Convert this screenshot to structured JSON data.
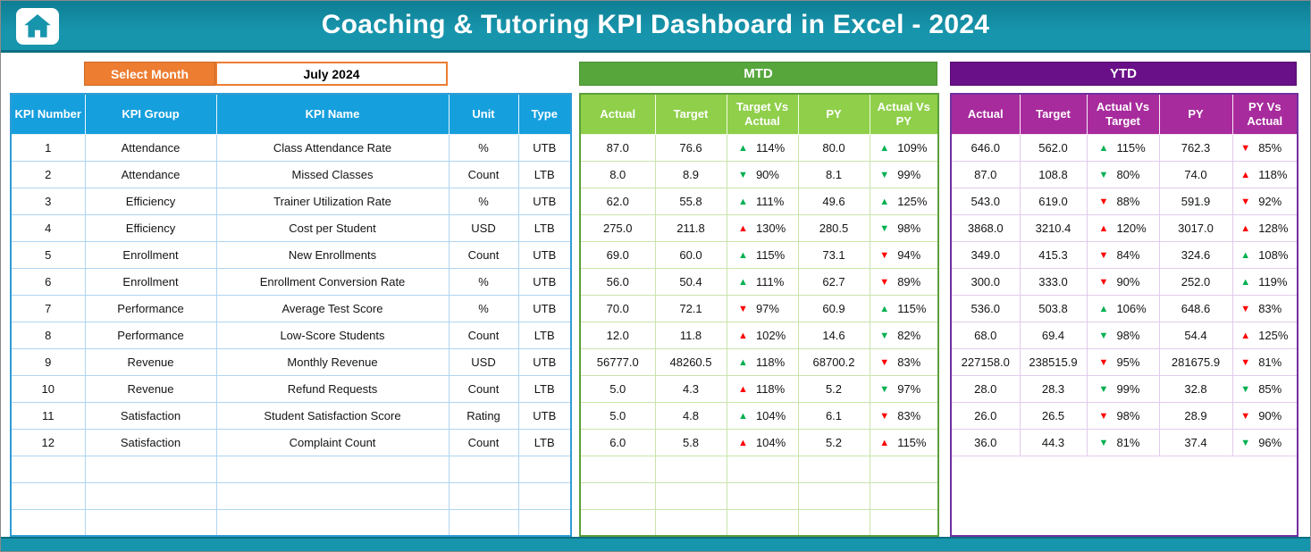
{
  "header": {
    "title": "Coaching & Tutoring KPI Dashboard in Excel - 2024"
  },
  "controls": {
    "select_month_label": "Select Month",
    "selected_month": "July 2024"
  },
  "sections": {
    "mtd_label": "MTD",
    "ytd_label": "YTD"
  },
  "table": {
    "kpi_headers": [
      "KPI Number",
      "KPI Group",
      "KPI Name",
      "Unit",
      "Type"
    ],
    "mtd_headers": [
      "Actual",
      "Target",
      "Target Vs Actual",
      "PY",
      "Actual Vs PY"
    ],
    "ytd_headers": [
      "Actual",
      "Target",
      "Actual Vs Target",
      "PY",
      "PY Vs Actual"
    ],
    "empty_row_count": 3,
    "rows": [
      {
        "number": "1",
        "group": "Attendance",
        "name": "Class Attendance Rate",
        "unit": "%",
        "type": "UTB",
        "mtd": {
          "actual": "87.0",
          "target": "76.6",
          "target_vs_actual": {
            "arrow": "up",
            "color": "green",
            "value": "114%"
          },
          "py": "80.0",
          "actual_vs_py": {
            "arrow": "up",
            "color": "green",
            "value": "109%"
          }
        },
        "ytd": {
          "actual": "646.0",
          "target": "562.0",
          "actual_vs_target": {
            "arrow": "up",
            "color": "green",
            "value": "115%"
          },
          "py": "762.3",
          "py_vs_actual": {
            "arrow": "down",
            "color": "red",
            "value": "85%"
          }
        }
      },
      {
        "number": "2",
        "group": "Attendance",
        "name": "Missed Classes",
        "unit": "Count",
        "type": "LTB",
        "mtd": {
          "actual": "8.0",
          "target": "8.9",
          "target_vs_actual": {
            "arrow": "down",
            "color": "green",
            "value": "90%"
          },
          "py": "8.1",
          "actual_vs_py": {
            "arrow": "down",
            "color": "green",
            "value": "99%"
          }
        },
        "ytd": {
          "actual": "87.0",
          "target": "108.8",
          "actual_vs_target": {
            "arrow": "down",
            "color": "green",
            "value": "80%"
          },
          "py": "74.0",
          "py_vs_actual": {
            "arrow": "up",
            "color": "red",
            "value": "118%"
          }
        }
      },
      {
        "number": "3",
        "group": "Efficiency",
        "name": "Trainer Utilization Rate",
        "unit": "%",
        "type": "UTB",
        "mtd": {
          "actual": "62.0",
          "target": "55.8",
          "target_vs_actual": {
            "arrow": "up",
            "color": "green",
            "value": "111%"
          },
          "py": "49.6",
          "actual_vs_py": {
            "arrow": "up",
            "color": "green",
            "value": "125%"
          }
        },
        "ytd": {
          "actual": "543.0",
          "target": "619.0",
          "actual_vs_target": {
            "arrow": "down",
            "color": "red",
            "value": "88%"
          },
          "py": "591.9",
          "py_vs_actual": {
            "arrow": "down",
            "color": "red",
            "value": "92%"
          }
        }
      },
      {
        "number": "4",
        "group": "Efficiency",
        "name": "Cost per Student",
        "unit": "USD",
        "type": "LTB",
        "mtd": {
          "actual": "275.0",
          "target": "211.8",
          "target_vs_actual": {
            "arrow": "up",
            "color": "red",
            "value": "130%"
          },
          "py": "280.5",
          "actual_vs_py": {
            "arrow": "down",
            "color": "green",
            "value": "98%"
          }
        },
        "ytd": {
          "actual": "3868.0",
          "target": "3210.4",
          "actual_vs_target": {
            "arrow": "up",
            "color": "red",
            "value": "120%"
          },
          "py": "3017.0",
          "py_vs_actual": {
            "arrow": "up",
            "color": "red",
            "value": "128%"
          }
        }
      },
      {
        "number": "5",
        "group": "Enrollment",
        "name": "New Enrollments",
        "unit": "Count",
        "type": "UTB",
        "mtd": {
          "actual": "69.0",
          "target": "60.0",
          "target_vs_actual": {
            "arrow": "up",
            "color": "green",
            "value": "115%"
          },
          "py": "73.1",
          "actual_vs_py": {
            "arrow": "down",
            "color": "red",
            "value": "94%"
          }
        },
        "ytd": {
          "actual": "349.0",
          "target": "415.3",
          "actual_vs_target": {
            "arrow": "down",
            "color": "red",
            "value": "84%"
          },
          "py": "324.6",
          "py_vs_actual": {
            "arrow": "up",
            "color": "green",
            "value": "108%"
          }
        }
      },
      {
        "number": "6",
        "group": "Enrollment",
        "name": "Enrollment Conversion Rate",
        "unit": "%",
        "type": "UTB",
        "mtd": {
          "actual": "56.0",
          "target": "50.4",
          "target_vs_actual": {
            "arrow": "up",
            "color": "green",
            "value": "111%"
          },
          "py": "62.7",
          "actual_vs_py": {
            "arrow": "down",
            "color": "red",
            "value": "89%"
          }
        },
        "ytd": {
          "actual": "300.0",
          "target": "333.0",
          "actual_vs_target": {
            "arrow": "down",
            "color": "red",
            "value": "90%"
          },
          "py": "252.0",
          "py_vs_actual": {
            "arrow": "up",
            "color": "green",
            "value": "119%"
          }
        }
      },
      {
        "number": "7",
        "group": "Performance",
        "name": "Average Test Score",
        "unit": "%",
        "type": "UTB",
        "mtd": {
          "actual": "70.0",
          "target": "72.1",
          "target_vs_actual": {
            "arrow": "down",
            "color": "red",
            "value": "97%"
          },
          "py": "60.9",
          "actual_vs_py": {
            "arrow": "up",
            "color": "green",
            "value": "115%"
          }
        },
        "ytd": {
          "actual": "536.0",
          "target": "503.8",
          "actual_vs_target": {
            "arrow": "up",
            "color": "green",
            "value": "106%"
          },
          "py": "648.6",
          "py_vs_actual": {
            "arrow": "down",
            "color": "red",
            "value": "83%"
          }
        }
      },
      {
        "number": "8",
        "group": "Performance",
        "name": "Low-Score Students",
        "unit": "Count",
        "type": "LTB",
        "mtd": {
          "actual": "12.0",
          "target": "11.8",
          "target_vs_actual": {
            "arrow": "up",
            "color": "red",
            "value": "102%"
          },
          "py": "14.6",
          "actual_vs_py": {
            "arrow": "down",
            "color": "green",
            "value": "82%"
          }
        },
        "ytd": {
          "actual": "68.0",
          "target": "69.4",
          "actual_vs_target": {
            "arrow": "down",
            "color": "green",
            "value": "98%"
          },
          "py": "54.4",
          "py_vs_actual": {
            "arrow": "up",
            "color": "red",
            "value": "125%"
          }
        }
      },
      {
        "number": "9",
        "group": "Revenue",
        "name": "Monthly Revenue",
        "unit": "USD",
        "type": "UTB",
        "mtd": {
          "actual": "56777.0",
          "target": "48260.5",
          "target_vs_actual": {
            "arrow": "up",
            "color": "green",
            "value": "118%"
          },
          "py": "68700.2",
          "actual_vs_py": {
            "arrow": "down",
            "color": "red",
            "value": "83%"
          }
        },
        "ytd": {
          "actual": "227158.0",
          "target": "238515.9",
          "actual_vs_target": {
            "arrow": "down",
            "color": "red",
            "value": "95%"
          },
          "py": "281675.9",
          "py_vs_actual": {
            "arrow": "down",
            "color": "red",
            "value": "81%"
          }
        }
      },
      {
        "number": "10",
        "group": "Revenue",
        "name": "Refund Requests",
        "unit": "Count",
        "type": "LTB",
        "mtd": {
          "actual": "5.0",
          "target": "4.3",
          "target_vs_actual": {
            "arrow": "up",
            "color": "red",
            "value": "118%"
          },
          "py": "5.2",
          "actual_vs_py": {
            "arrow": "down",
            "color": "green",
            "value": "97%"
          }
        },
        "ytd": {
          "actual": "28.0",
          "target": "28.3",
          "actual_vs_target": {
            "arrow": "down",
            "color": "green",
            "value": "99%"
          },
          "py": "32.8",
          "py_vs_actual": {
            "arrow": "down",
            "color": "green",
            "value": "85%"
          }
        }
      },
      {
        "number": "11",
        "group": "Satisfaction",
        "name": "Student Satisfaction Score",
        "unit": "Rating",
        "type": "UTB",
        "mtd": {
          "actual": "5.0",
          "target": "4.8",
          "target_vs_actual": {
            "arrow": "up",
            "color": "green",
            "value": "104%"
          },
          "py": "6.1",
          "actual_vs_py": {
            "arrow": "down",
            "color": "red",
            "value": "83%"
          }
        },
        "ytd": {
          "actual": "26.0",
          "target": "26.5",
          "actual_vs_target": {
            "arrow": "down",
            "color": "red",
            "value": "98%"
          },
          "py": "28.9",
          "py_vs_actual": {
            "arrow": "down",
            "color": "red",
            "value": "90%"
          }
        }
      },
      {
        "number": "12",
        "group": "Satisfaction",
        "name": "Complaint Count",
        "unit": "Count",
        "type": "LTB",
        "mtd": {
          "actual": "6.0",
          "target": "5.8",
          "target_vs_actual": {
            "arrow": "up",
            "color": "red",
            "value": "104%"
          },
          "py": "5.2",
          "actual_vs_py": {
            "arrow": "up",
            "color": "red",
            "value": "115%"
          }
        },
        "ytd": {
          "actual": "36.0",
          "target": "44.3",
          "actual_vs_target": {
            "arrow": "down",
            "color": "green",
            "value": "81%"
          },
          "py": "37.4",
          "py_vs_actual": {
            "arrow": "down",
            "color": "green",
            "value": "96%"
          }
        }
      }
    ]
  },
  "colors": {
    "teal": "#1795AC",
    "teal_dark": "#0F7E94",
    "orange": "#ED7D31",
    "kpi_header_blue": "#169FDD",
    "mtd_banner_green": "#57A63C",
    "mtd_header_green": "#8FCF4A",
    "ytd_banner_purple": "#690F87",
    "ytd_header_magenta": "#A82B9D",
    "arrow_green": "#00B050",
    "arrow_red": "#FF0000"
  }
}
